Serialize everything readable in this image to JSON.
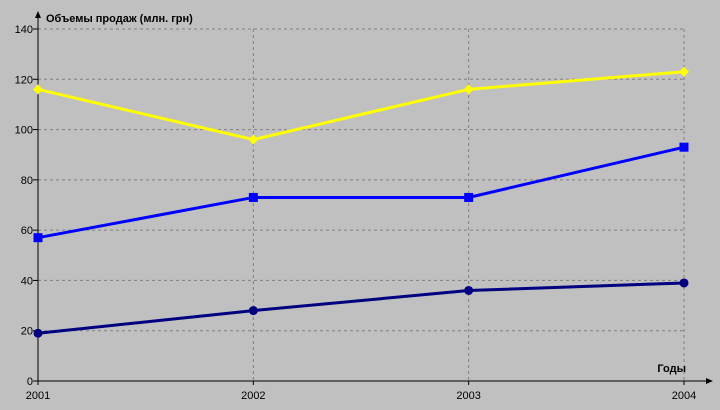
{
  "chart_data": {
    "type": "line",
    "title": "Объемы продаж (млн. грн)",
    "x_label": "Годы",
    "categories": [
      "2001",
      "2002",
      "2003",
      "2004"
    ],
    "series": [
      {
        "color": "#ffff00",
        "marker": "diamond",
        "values": [
          116,
          96,
          116,
          123
        ]
      },
      {
        "color": "#0000ff",
        "marker": "square",
        "values": [
          57,
          73,
          73,
          93
        ]
      },
      {
        "color": "#000080",
        "marker": "circle",
        "values": [
          19,
          28,
          36,
          39
        ]
      }
    ],
    "ylim": [
      0,
      140
    ],
    "yticks": [
      0,
      20,
      40,
      60,
      80,
      100,
      120,
      140
    ],
    "grid": true
  }
}
